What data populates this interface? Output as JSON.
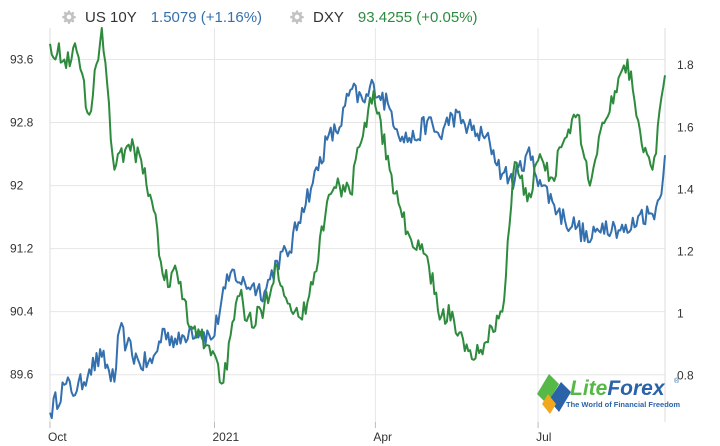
{
  "legend": {
    "us10y": {
      "name": "US 10Y",
      "value": "1.5079 (+1.16%)",
      "color": "#3470ae",
      "icon": "gear-icon"
    },
    "dxy": {
      "name": "DXY",
      "value": "93.4255 (+0.05%)",
      "color": "#2e8b3e",
      "icon": "gear-icon"
    }
  },
  "logo": {
    "name": "LiteForex",
    "tagline": "The World of Financial Freedom",
    "mark": "®"
  },
  "chart_data": {
    "type": "line",
    "title": "",
    "xlabel": "",
    "ylabel": "",
    "grid": true,
    "x_ticks": [
      "Oct",
      "2021",
      "Apr",
      "Jul"
    ],
    "x_tick_months": [
      "2020-10",
      "2021-01",
      "2021-04",
      "2021-07"
    ],
    "x_range": [
      "2020-10-01",
      "2021-09-10"
    ],
    "y_left": {
      "series": "DXY",
      "range": [
        89.0,
        94.0
      ],
      "ticks": [
        "93.6",
        "92.8",
        "92",
        "91.2",
        "90.4",
        "89.6"
      ],
      "tick_values": [
        93.6,
        92.8,
        92.0,
        91.2,
        90.4,
        89.6
      ]
    },
    "y_right": {
      "series": "US 10Y",
      "range": [
        0.65,
        1.92
      ],
      "ticks": [
        "1.8",
        "1.6",
        "1.4",
        "1.2",
        "1",
        "0.8"
      ],
      "tick_values": [
        1.8,
        1.6,
        1.4,
        1.2,
        1.0,
        0.8
      ]
    },
    "series": [
      {
        "name": "US 10Y",
        "axis": "right",
        "color": "#3470ae",
        "x": [
          "2020-10-01",
          "2020-10-09",
          "2020-10-16",
          "2020-10-23",
          "2020-10-30",
          "2020-11-06",
          "2020-11-09",
          "2020-11-13",
          "2020-11-20",
          "2020-11-27",
          "2020-12-04",
          "2020-12-11",
          "2020-12-18",
          "2020-12-24",
          "2020-12-31",
          "2021-01-07",
          "2021-01-12",
          "2021-01-15",
          "2021-01-22",
          "2021-01-29",
          "2021-02-05",
          "2021-02-12",
          "2021-02-19",
          "2021-02-25",
          "2021-03-05",
          "2021-03-12",
          "2021-03-18",
          "2021-03-26",
          "2021-03-31",
          "2021-04-09",
          "2021-04-16",
          "2021-04-23",
          "2021-04-30",
          "2021-05-07",
          "2021-05-14",
          "2021-05-21",
          "2021-05-28",
          "2021-06-04",
          "2021-06-11",
          "2021-06-18",
          "2021-06-25",
          "2021-07-02",
          "2021-07-09",
          "2021-07-16",
          "2021-07-23",
          "2021-07-30",
          "2021-08-06",
          "2021-08-13",
          "2021-08-20",
          "2021-08-27",
          "2021-09-03",
          "2021-09-07",
          "2021-09-10"
        ],
        "values": [
          0.68,
          0.77,
          0.75,
          0.82,
          0.86,
          0.78,
          0.95,
          0.9,
          0.84,
          0.84,
          0.95,
          0.9,
          0.95,
          0.94,
          0.92,
          1.08,
          1.14,
          1.1,
          1.09,
          1.07,
          1.17,
          1.2,
          1.34,
          1.42,
          1.56,
          1.6,
          1.72,
          1.68,
          1.74,
          1.66,
          1.57,
          1.56,
          1.62,
          1.57,
          1.64,
          1.61,
          1.58,
          1.55,
          1.45,
          1.43,
          1.52,
          1.43,
          1.36,
          1.3,
          1.28,
          1.23,
          1.29,
          1.28,
          1.26,
          1.32,
          1.32,
          1.37,
          1.51
        ]
      },
      {
        "name": "DXY",
        "axis": "left",
        "color": "#2e8b3e",
        "x": [
          "2020-10-01",
          "2020-10-09",
          "2020-10-16",
          "2020-10-23",
          "2020-10-30",
          "2020-11-06",
          "2020-11-13",
          "2020-11-20",
          "2020-11-27",
          "2020-12-04",
          "2020-12-11",
          "2020-12-18",
          "2020-12-24",
          "2020-12-31",
          "2021-01-06",
          "2021-01-12",
          "2021-01-15",
          "2021-01-22",
          "2021-01-29",
          "2021-02-05",
          "2021-02-12",
          "2021-02-19",
          "2021-02-26",
          "2021-03-05",
          "2021-03-12",
          "2021-03-18",
          "2021-03-26",
          "2021-03-31",
          "2021-04-09",
          "2021-04-16",
          "2021-04-23",
          "2021-04-30",
          "2021-05-07",
          "2021-05-14",
          "2021-05-21",
          "2021-05-25",
          "2021-06-01",
          "2021-06-11",
          "2021-06-18",
          "2021-06-25",
          "2021-07-02",
          "2021-07-09",
          "2021-07-16",
          "2021-07-23",
          "2021-07-30",
          "2021-08-06",
          "2021-08-13",
          "2021-08-20",
          "2021-08-27",
          "2021-09-03",
          "2021-09-10"
        ],
        "values": [
          93.8,
          93.6,
          93.7,
          92.9,
          94.0,
          92.2,
          92.5,
          92.4,
          91.8,
          90.8,
          90.9,
          90.2,
          90.1,
          89.9,
          89.5,
          90.3,
          90.6,
          90.2,
          90.5,
          91.0,
          90.5,
          90.3,
          90.9,
          91.8,
          92.0,
          91.9,
          92.8,
          93.2,
          92.2,
          91.6,
          91.2,
          91.1,
          90.3,
          90.4,
          89.9,
          89.8,
          90.0,
          90.4,
          92.3,
          91.8,
          92.4,
          92.1,
          92.6,
          92.9,
          92.0,
          92.8,
          93.2,
          93.6,
          92.7,
          92.2,
          93.4
        ]
      }
    ]
  }
}
